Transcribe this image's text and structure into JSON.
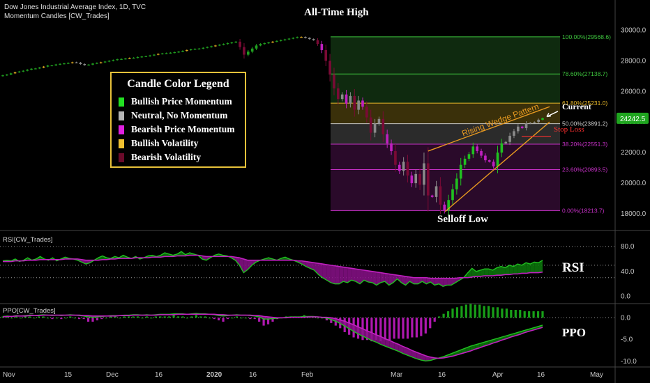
{
  "header": {
    "title": "Dow Jones Industrial Average Index, 1D, TVC",
    "indicator": "Momentum Candles [CW_Trades]"
  },
  "annotations": {
    "ath": "All-Time High",
    "low": "Selloff Low",
    "current": "Current",
    "stop": "Stop Loss",
    "wedge": "Rising Wedge Pattern"
  },
  "legend": {
    "title": "Candle Color Legend",
    "items": [
      {
        "label": "Bullish Price Momentum",
        "color": "#22e022"
      },
      {
        "label": "Neutral, No Momentum",
        "color": "#b4b4b4"
      },
      {
        "label": "Bearish Price Momentum",
        "color": "#e020e0"
      },
      {
        "label": "Bullish Volatility",
        "color": "#f0c030"
      },
      {
        "label": "Bearish Volatility",
        "color": "#6a0a2a"
      }
    ]
  },
  "panes": {
    "rsi_label": "RSI[CW_Trades]",
    "rsi_big": "RSI",
    "ppo_label": "PPO[CW_Trades]",
    "ppo_big": "PPO"
  },
  "price_badge": {
    "value": "24242.5",
    "color": "#1fa51f"
  },
  "chart_data": [
    {
      "type": "candlestick",
      "title": "Dow Jones Industrial Average Index, 1D, TVC",
      "ylim": [
        17500,
        30700
      ],
      "y_ticks": [
        "30000.0",
        "28000.0",
        "26000.0",
        "24000.0",
        "22000.0",
        "20000.0",
        "18000.0"
      ],
      "x_ticks": [
        "Nov",
        "15",
        "Dec",
        "16",
        "2020",
        "16",
        "Feb",
        "Mar",
        "16",
        "Apr",
        "16",
        "May"
      ],
      "fibonacci": [
        {
          "label": "100.00%(29568.6)",
          "value": 29568.6,
          "color": "#3ec63e"
        },
        {
          "label": "78.60%(27138.7)",
          "value": 27138.7,
          "color": "#3ec63e"
        },
        {
          "label": "61.80%(25231.0)",
          "value": 25231.0,
          "color": "#e8b82a"
        },
        {
          "label": "50.00%(23891.2)",
          "value": 23891.2,
          "color": "#c8c8c8"
        },
        {
          "label": "38.20%(22551.3)",
          "value": 22551.3,
          "color": "#c430c4"
        },
        {
          "label": "23.60%(20893.5)",
          "value": 20893.5,
          "color": "#c430c4"
        },
        {
          "label": "0.00%(18213.7)",
          "value": 18213.7,
          "color": "#c430c4"
        }
      ],
      "closes": [
        27050,
        27100,
        27180,
        27250,
        27300,
        27350,
        27420,
        27480,
        27500,
        27560,
        27620,
        27690,
        27700,
        27760,
        27800,
        27830,
        27860,
        27900,
        27880,
        27790,
        27720,
        27750,
        27820,
        27860,
        27900,
        27950,
        28000,
        28050,
        28100,
        28120,
        28150,
        28180,
        28200,
        28240,
        28280,
        28300,
        28350,
        28400,
        28450,
        28480,
        28500,
        28530,
        28560,
        28600,
        28650,
        28700,
        28750,
        28780,
        28800,
        28850,
        28900,
        28950,
        29000,
        29050,
        29100,
        29150,
        29200,
        29250,
        28900,
        28400,
        28600,
        28800,
        29000,
        29100,
        29150,
        29200,
        29250,
        29300,
        29350,
        29400,
        29450,
        29500,
        29550,
        29560,
        29500,
        29420,
        29350,
        29100,
        28700,
        28000,
        27100,
        26200,
        25500,
        25800,
        25200,
        25700,
        24800,
        25400,
        25000,
        24300,
        23300,
        23900,
        24200,
        23200,
        22600,
        22100,
        21200,
        20800,
        21400,
        20500,
        20000,
        20600,
        19900,
        21300,
        19200,
        19100,
        19800,
        18600,
        18214,
        18900,
        19600,
        20300,
        21200,
        21600,
        21900,
        22400,
        22100,
        21800,
        21500,
        21400,
        21100,
        22000,
        22600,
        22700,
        23100,
        23400,
        23700,
        23600,
        23900,
        23950,
        24000,
        24150,
        24242.5
      ],
      "current_value": 24242.5,
      "stop_loss_value": 23050,
      "annotations": [
        "All-Time High",
        "Selloff Low",
        "Current",
        "Stop Loss",
        "Rising Wedge Pattern"
      ]
    },
    {
      "type": "line",
      "title": "RSI[CW_Trades]",
      "ylim": [
        -5,
        98
      ],
      "y_ticks": [
        "80.0",
        "40.0",
        "0.0"
      ],
      "levels": [
        80,
        50,
        30
      ],
      "series": [
        {
          "values": [
            57,
            58,
            57,
            60,
            56,
            58,
            62,
            58,
            60,
            64,
            60,
            58,
            62,
            57,
            60,
            63,
            61,
            60,
            58,
            55,
            52,
            54,
            58,
            62,
            65,
            62,
            61,
            64,
            62,
            66,
            63,
            61,
            64,
            60,
            62,
            65,
            66,
            64,
            66,
            70,
            68,
            66,
            68,
            72,
            67,
            70,
            68,
            66,
            60,
            58,
            62,
            66,
            68,
            66,
            65,
            62,
            58,
            50,
            38,
            43,
            50,
            55,
            58,
            60,
            62,
            60,
            58,
            61,
            63,
            60,
            58,
            55,
            52,
            48,
            45,
            42,
            35,
            30,
            26,
            22,
            20,
            20,
            24,
            22,
            26,
            24,
            20,
            26,
            23,
            22,
            18,
            22,
            24,
            18,
            22,
            28,
            22,
            18,
            24,
            20,
            20,
            24,
            20,
            23,
            18,
            20,
            16,
            18,
            18,
            22,
            26,
            30,
            38,
            45,
            40,
            42,
            44,
            44,
            42,
            46,
            48,
            46,
            50,
            48,
            52,
            50,
            54,
            52,
            55,
            54,
            58
          ],
          "color": "#20c020"
        },
        {
          "values": [
            56,
            56,
            56,
            57,
            57,
            57,
            58,
            58,
            58,
            59,
            59,
            59,
            59,
            59,
            59,
            60,
            60,
            60,
            60,
            59,
            58,
            58,
            58,
            58,
            59,
            59,
            60,
            60,
            61,
            61,
            61,
            61,
            62,
            62,
            62,
            62,
            63,
            63,
            63,
            64,
            64,
            64,
            65,
            65,
            65,
            66,
            66,
            66,
            65,
            64,
            64,
            64,
            64,
            64,
            64,
            64,
            63,
            62,
            60,
            58,
            58,
            58,
            58,
            58,
            58,
            58,
            58,
            58,
            58,
            58,
            58,
            57,
            57,
            56,
            55,
            54,
            53,
            52,
            51,
            50,
            49,
            48,
            47,
            46,
            45,
            44,
            43,
            42,
            41,
            40,
            39,
            38,
            37,
            36,
            35,
            34,
            33,
            32,
            31,
            30,
            30,
            30,
            30,
            29,
            29,
            29,
            29,
            29,
            29,
            29,
            30,
            30,
            30,
            31,
            32,
            32,
            33,
            33,
            33,
            34,
            34,
            35,
            35,
            36,
            36,
            37,
            37,
            38,
            38,
            38,
            39
          ],
          "color": "#c020c0"
        }
      ]
    },
    {
      "type": "line",
      "title": "PPO[CW_Trades]",
      "ylim": [
        -10.8,
        2.6
      ],
      "y_ticks": [
        "0.0",
        "-5.0",
        "-10.0"
      ],
      "series": [
        {
          "values": [
            0.3,
            0.4,
            0.3,
            0.5,
            0.4,
            0.5,
            0.6,
            0.5,
            0.6,
            0.7,
            0.6,
            0.5,
            0.6,
            0.5,
            0.6,
            0.7,
            0.6,
            0.5,
            0.4,
            0.2,
            0.1,
            0.2,
            0.3,
            0.4,
            0.5,
            0.5,
            0.5,
            0.6,
            0.6,
            0.7,
            0.7,
            0.6,
            0.7,
            0.6,
            0.7,
            0.8,
            0.8,
            0.8,
            0.9,
            0.9,
            0.9,
            0.8,
            0.9,
            1.0,
            0.9,
            0.9,
            0.8,
            0.7,
            0.5,
            0.4,
            0.5,
            0.6,
            0.7,
            0.6,
            0.6,
            0.5,
            0.4,
            0.2,
            -0.3,
            -0.3,
            -0.2,
            -0.1,
            0.0,
            0.1,
            0.2,
            0.2,
            0.2,
            0.3,
            0.3,
            0.3,
            0.2,
            0.1,
            -0.1,
            -0.4,
            -0.8,
            -1.3,
            -1.9,
            -2.5,
            -3.1,
            -3.7,
            -4.2,
            -4.7,
            -5.2,
            -5.6,
            -6.1,
            -6.5,
            -6.9,
            -7.3,
            -7.7,
            -8.2,
            -8.6,
            -9.0,
            -9.4,
            -9.7,
            -9.9,
            -9.8,
            -9.5,
            -9.2,
            -8.9,
            -8.5,
            -8.1,
            -7.7,
            -7.3,
            -6.9,
            -6.5,
            -6.2,
            -5.9,
            -5.6,
            -5.3,
            -5.0,
            -4.7,
            -4.4,
            -4.1,
            -3.8,
            -3.5,
            -3.2,
            -2.9,
            -2.6,
            -2.3,
            -2.0,
            -1.7
          ],
          "color": "#20c020"
        },
        {
          "values": [
            0.2,
            0.3,
            0.3,
            0.4,
            0.4,
            0.4,
            0.5,
            0.5,
            0.5,
            0.6,
            0.6,
            0.6,
            0.6,
            0.6,
            0.6,
            0.6,
            0.6,
            0.6,
            0.5,
            0.5,
            0.4,
            0.4,
            0.4,
            0.4,
            0.4,
            0.4,
            0.5,
            0.5,
            0.5,
            0.6,
            0.6,
            0.6,
            0.6,
            0.6,
            0.6,
            0.7,
            0.7,
            0.7,
            0.7,
            0.8,
            0.8,
            0.8,
            0.8,
            0.8,
            0.8,
            0.8,
            0.8,
            0.8,
            0.7,
            0.7,
            0.6,
            0.6,
            0.6,
            0.6,
            0.6,
            0.6,
            0.5,
            0.5,
            0.3,
            0.2,
            0.1,
            0.0,
            0.0,
            0.0,
            0.1,
            0.1,
            0.1,
            0.1,
            0.2,
            0.2,
            0.2,
            0.1,
            0.1,
            0.0,
            -0.2,
            -0.5,
            -0.8,
            -1.2,
            -1.6,
            -2.1,
            -2.5,
            -3.0,
            -3.4,
            -3.9,
            -4.3,
            -4.8,
            -5.2,
            -5.7,
            -6.1,
            -6.6,
            -7.0,
            -7.5,
            -7.9,
            -8.3,
            -8.7,
            -9.0,
            -9.2,
            -9.3,
            -9.2,
            -9.0,
            -8.8,
            -8.5,
            -8.2,
            -7.9,
            -7.6,
            -7.2,
            -6.9,
            -6.5,
            -6.2,
            -5.8,
            -5.5,
            -5.1,
            -4.8,
            -4.4,
            -4.1,
            -3.8,
            -3.4,
            -3.1,
            -2.8,
            -2.5,
            -2.2
          ],
          "color": "#c020c0"
        }
      ]
    }
  ]
}
